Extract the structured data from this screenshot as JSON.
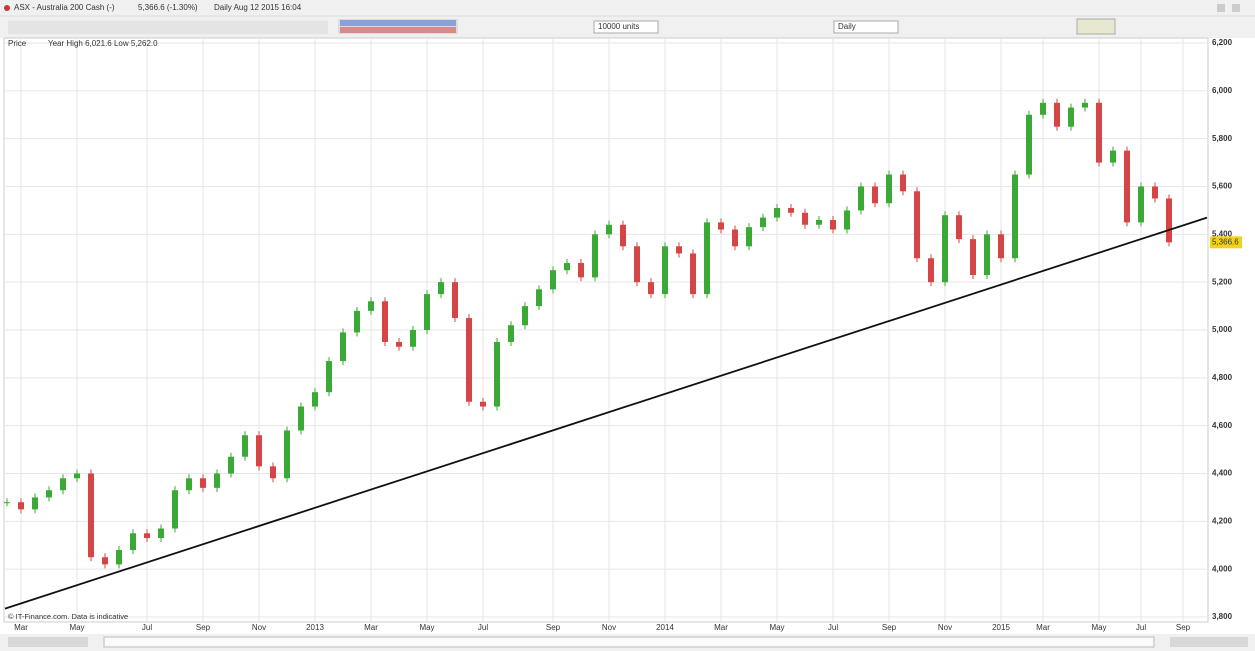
{
  "header": {
    "instrument": "ASX - Australia 200 Cash (-)",
    "quote": "5,366.6 (-1.30%)",
    "period": "Daily  Aug 12 2015 16:04",
    "units": "10000 units",
    "interval": "Daily"
  },
  "chart_data": {
    "type": "candles",
    "price_label": "Price",
    "range_note": "Year High 6,021.6 Low 5,262.0",
    "footer": "© IT-Finance.com. Data is indicative",
    "categories": [
      null,
      "Mar",
      null,
      null,
      null,
      "May",
      null,
      null,
      null,
      null,
      "Jul",
      null,
      null,
      null,
      "Sep",
      null,
      null,
      null,
      "Nov",
      null,
      null,
      null,
      "2013",
      null,
      null,
      null,
      "Mar",
      null,
      null,
      null,
      "May",
      null,
      null,
      null,
      "Jul",
      null,
      null,
      null,
      null,
      "Sep",
      null,
      null,
      null,
      "Nov",
      null,
      null,
      null,
      "2014",
      null,
      null,
      null,
      "Mar",
      null,
      null,
      null,
      "May",
      null,
      null,
      null,
      "Jul",
      null,
      null,
      null,
      "Sep",
      null,
      null,
      null,
      "Nov",
      null,
      null,
      null,
      "2015",
      null,
      null,
      "Mar",
      null,
      null,
      null,
      "May",
      null,
      null,
      "Jul",
      null,
      null,
      "Sep"
    ],
    "values": [
      4280,
      4250,
      4300,
      4330,
      4380,
      4400,
      4050,
      4020,
      4080,
      4150,
      4130,
      4170,
      4330,
      4380,
      4340,
      4400,
      4470,
      4560,
      4430,
      4380,
      4580,
      4680,
      4740,
      4870,
      4990,
      5080,
      5120,
      4950,
      4930,
      5000,
      5150,
      5200,
      5050,
      4700,
      4680,
      4950,
      5020,
      5100,
      5170,
      5250,
      5280,
      5220,
      5400,
      5440,
      5350,
      5200,
      5150,
      5350,
      5320,
      5150,
      5450,
      5420,
      5350,
      5430,
      5470,
      5510,
      5490,
      5440,
      5460,
      5420,
      5500,
      5600,
      5530,
      5650,
      5580,
      5300,
      5200,
      5480,
      5380,
      5230,
      5400,
      5300,
      5650,
      5900,
      5950,
      5850,
      5930,
      5950,
      5700,
      5750,
      5450,
      5600,
      5550,
      5366.6,
      null
    ],
    "up_color": "#3aa935",
    "down_color": "#d64545",
    "last_price": {
      "value": 5366.6,
      "label": "5,366.6"
    },
    "trendline": {
      "start": 3835,
      "end": 5470,
      "color": "#111111"
    },
    "ylim": [
      3800,
      6200
    ],
    "yticks": [
      {
        "value": 3800,
        "label": "3,800"
      },
      {
        "value": 4000,
        "label": "4,000"
      },
      {
        "value": 4200,
        "label": "4,200"
      },
      {
        "value": 4400,
        "label": "4,400"
      },
      {
        "value": 4600,
        "label": "4,600"
      },
      {
        "value": 4800,
        "label": "4,800"
      },
      {
        "value": 5000,
        "label": "5,000"
      },
      {
        "value": 5200,
        "label": "5,200"
      },
      {
        "value": 5400,
        "label": "5,400"
      },
      {
        "value": 5600,
        "label": "5,600"
      },
      {
        "value": 5800,
        "label": "5,800"
      },
      {
        "value": 6000,
        "label": "6,000"
      },
      {
        "value": 6200,
        "label": "6,200"
      }
    ],
    "grid": true
  }
}
